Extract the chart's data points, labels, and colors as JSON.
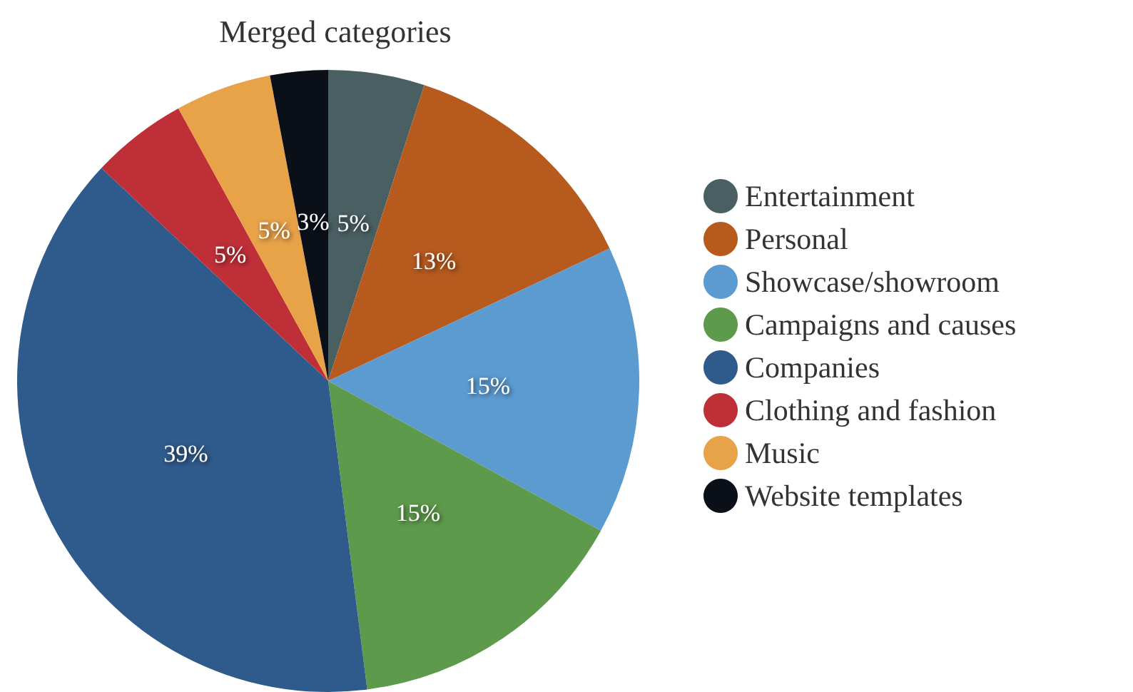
{
  "chart_data": {
    "type": "pie",
    "title": "Merged categories",
    "categories": [
      "Entertainment",
      "Personal",
      "Showcase/showroom",
      "Campaigns and causes",
      "Companies",
      "Clothing and fashion",
      "Music",
      "Website templates"
    ],
    "values": [
      5,
      13,
      15,
      15,
      39,
      5,
      5,
      3
    ],
    "colors": [
      "#4a5f62",
      "#b65a1e",
      "#5b9bd0",
      "#5e9a4b",
      "#2f5a8c",
      "#bf2f38",
      "#e8a248",
      "#0a0f18"
    ],
    "value_labels": [
      "5%",
      "13%",
      "15%",
      "15%",
      "39%",
      "5%",
      "5%",
      "3%"
    ],
    "legend": "right"
  }
}
